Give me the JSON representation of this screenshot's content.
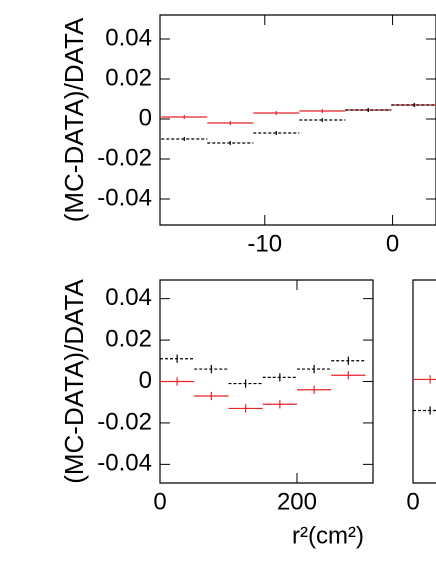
{
  "chart_data": [
    {
      "type": "errorbar",
      "y_label": "(MC-DATA)/DATA",
      "xlim": [
        -18.2,
        3.4
      ],
      "xticks": [
        -10,
        0
      ],
      "ylim": [
        -0.053,
        0.052
      ],
      "yticks": [
        0.04,
        0.02,
        0,
        -0.02,
        -0.04
      ],
      "x": [
        -16.3,
        -12.7,
        -9.1,
        -5.5,
        -1.9,
        1.7
      ],
      "xerr": 1.8,
      "yerr": 0.001,
      "series": [
        {
          "color": "#e8232a",
          "style": "solid",
          "values": [
            0.001,
            -0.002,
            0.003,
            0.004,
            0.0045,
            0.007
          ]
        },
        {
          "color": "#000000",
          "style": "dashed",
          "values": [
            -0.01,
            -0.012,
            -0.007,
            -0.0005,
            0.0045,
            0.007
          ]
        }
      ]
    },
    {
      "type": "errorbar",
      "y_label": "(MC-DATA)/DATA",
      "x_label": "r²(cm²)",
      "xlim": [
        0,
        311
      ],
      "xticks": [
        0,
        200
      ],
      "ylim": [
        -0.049,
        0.049
      ],
      "yticks": [
        0.04,
        0.02,
        0,
        -0.02,
        -0.04
      ],
      "x": [
        25,
        75,
        125,
        175,
        225,
        275
      ],
      "xerr": 25,
      "yerr": 0.002,
      "series": [
        {
          "color": "#e8232a",
          "style": "solid",
          "values": [
            0,
            -0.007,
            -0.013,
            -0.011,
            -0.004,
            0.003
          ]
        },
        {
          "color": "#000000",
          "style": "dashed",
          "values": [
            0.011,
            0.006,
            -0.001,
            0.002,
            0.006,
            0.01
          ]
        }
      ]
    },
    {
      "type": "errorbar",
      "xlim": [
        0,
        311
      ],
      "xticks": [
        0
      ],
      "ylim": [
        -0.049,
        0.049
      ],
      "x": [
        25
      ],
      "xerr": 25,
      "yerr": 0.002,
      "series": [
        {
          "color": "#e8232a",
          "style": "solid",
          "values": [
            0.001
          ]
        },
        {
          "color": "#000000",
          "style": "dashed",
          "values": [
            -0.014
          ]
        }
      ]
    }
  ]
}
